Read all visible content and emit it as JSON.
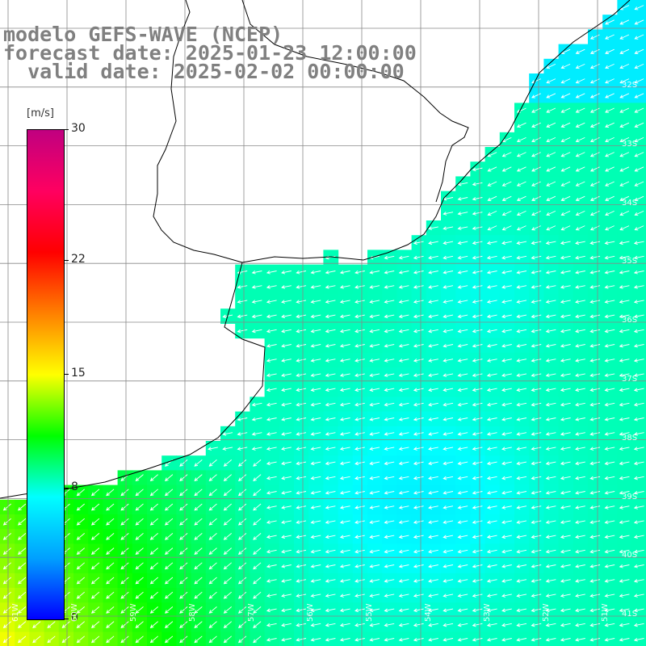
{
  "header": {
    "line1": "modelo GEFS-WAVE (NCEP)",
    "line2": "forecast date: 2025-01-23 12:00:00",
    "line3": "  valid date: 2025-02-02 00:00:00"
  },
  "colorbar": {
    "unit": "[m/s]",
    "min": 0,
    "max": 30,
    "ticks": [
      {
        "label": "30",
        "value": 30
      },
      {
        "label": "22",
        "value": 22
      },
      {
        "label": "15",
        "value": 15
      },
      {
        "label": "8",
        "value": 8
      },
      {
        "label": "0",
        "value": 0
      }
    ],
    "colors": [
      "#0000ff",
      "#00a0ff",
      "#00ffff",
      "#00ff00",
      "#ffff00",
      "#ff8000",
      "#ff0000",
      "#ff0060",
      "#c00080"
    ]
  },
  "axes": {
    "lat_labels": [
      "32S",
      "33S",
      "34S",
      "35S",
      "36S",
      "37S",
      "38S",
      "39S",
      "40S",
      "41S"
    ],
    "lon_labels": [
      "61W",
      "60W",
      "59W",
      "58W",
      "57W",
      "56W",
      "55W",
      "54W",
      "53W",
      "52W",
      "51W"
    ]
  },
  "wind_field": {
    "parameter": "wind speed",
    "units": "m/s",
    "northeast_direction_deg": 240,
    "southwest_direction_deg": 220,
    "typical_speed_ocean": 9,
    "typical_speed_southwest": 12
  }
}
